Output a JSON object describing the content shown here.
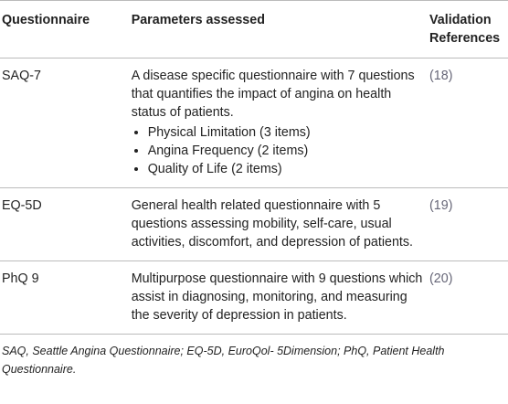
{
  "table": {
    "headers": [
      "Questionnaire",
      "Parameters assessed",
      "Validation References"
    ],
    "rows": [
      {
        "questionnaire": "SAQ-7",
        "description": "A disease specific questionnaire with 7 questions that quantifies the impact of angina on health status of patients.",
        "bullets": [
          "Physical Limitation (3 items)",
          "Angina Frequency (2 items)",
          "Quality of Life (2 items)"
        ],
        "reference": "(18)"
      },
      {
        "questionnaire": "EQ-5D",
        "description": "General health related questionnaire with 5 questions assessing mobility, self-care, usual activities, discomfort, and depression of patients.",
        "bullets": [],
        "reference": "(19)"
      },
      {
        "questionnaire": "PhQ 9",
        "description": "Multipurpose questionnaire with 9 questions which assist in diagnosing, monitoring, and measuring the severity of depression in patients.",
        "bullets": [],
        "reference": "(20)"
      }
    ],
    "footnote": "SAQ, Seattle Angina Questionnaire; EQ-5D, EuroQol- 5Dimension; PhQ, Patient Health Questionnaire."
  }
}
